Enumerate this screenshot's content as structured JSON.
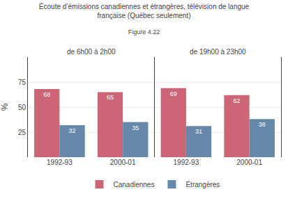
{
  "chart_data": {
    "type": "bar",
    "title": "Écoute d’émissions canadiennes et étrangères, télévision de langue\nfrançaise (Québec seulement)",
    "subtitle": "Figure 4.22",
    "annotations": [
      {
        "text": "de 6h00 à 2h00"
      },
      {
        "text": "de 19h00 à 23h00"
      }
    ],
    "categories": [
      "1992-93",
      "2000-01",
      "1992-93",
      "2000-01"
    ],
    "series": [
      {
        "name": "Canadiennes",
        "color": "#cc6677",
        "values": [
          68,
          65,
          69,
          62
        ]
      },
      {
        "name": "Étrangères",
        "color": "#6688aa",
        "values": [
          32,
          35,
          31,
          38
        ]
      }
    ],
    "ylabel": "%",
    "ylim": [
      0,
      100
    ],
    "yticks": [
      25,
      50,
      75
    ],
    "grid": true,
    "legend": "bottom",
    "data_labels": true
  }
}
